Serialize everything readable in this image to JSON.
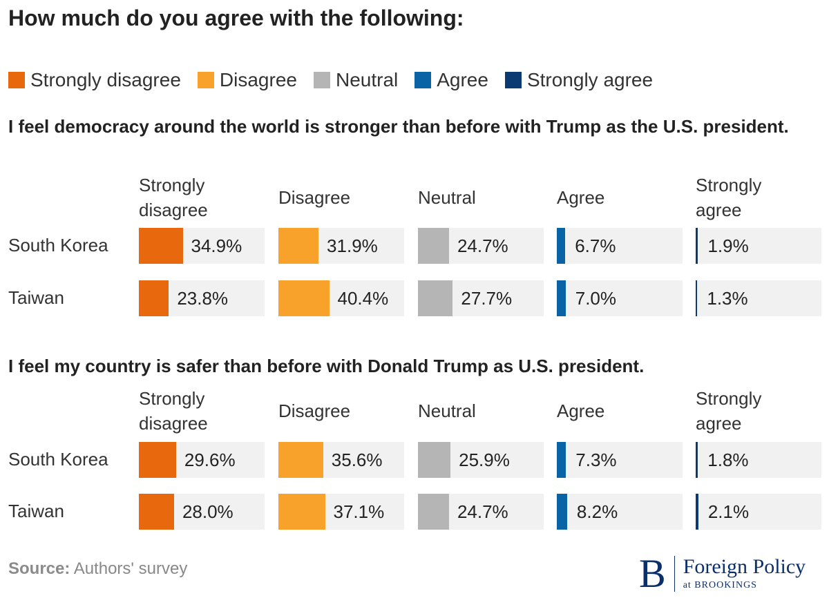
{
  "title": "How much do you agree with the following:",
  "legend": [
    {
      "label": "Strongly disagree",
      "color": "#e8690d"
    },
    {
      "label": "Disagree",
      "color": "#f8a22b"
    },
    {
      "label": "Neutral",
      "color": "#b5b5b5"
    },
    {
      "label": "Agree",
      "color": "#0a63a5"
    },
    {
      "label": "Strongly agree",
      "color": "#0b3a73"
    }
  ],
  "columns": [
    "Strongly\ndisagree",
    "Disagree",
    "Neutral",
    "Agree",
    "Strongly\nagree"
  ],
  "chart_data": {
    "type": "table",
    "categories": [
      "Strongly disagree",
      "Disagree",
      "Neutral",
      "Agree",
      "Strongly agree"
    ],
    "panels": [
      {
        "question": "I feel democracy around the world is stronger than before with Trump as the U.S. president.",
        "rows": [
          {
            "country": "South Korea",
            "values": [
              34.9,
              31.9,
              24.7,
              6.7,
              1.9
            ],
            "labels": [
              "34.9%",
              "31.9%",
              "24.7%",
              "6.7%",
              "1.9%"
            ]
          },
          {
            "country": "Taiwan",
            "values": [
              23.8,
              40.4,
              27.7,
              7.0,
              1.3
            ],
            "labels": [
              "23.8%",
              "40.4%",
              "27.7%",
              "7.0%",
              "1.3%"
            ]
          }
        ]
      },
      {
        "question": "I feel my country is safer than before with Donald Trump as U.S. president.",
        "rows": [
          {
            "country": "South Korea",
            "values": [
              29.6,
              35.6,
              25.9,
              7.3,
              1.8
            ],
            "labels": [
              "29.6%",
              "35.6%",
              "25.9%",
              "7.3%",
              "1.8%"
            ]
          },
          {
            "country": "Taiwan",
            "values": [
              28.0,
              37.1,
              24.7,
              8.2,
              2.1
            ],
            "labels": [
              "28.0%",
              "37.1%",
              "24.7%",
              "8.2%",
              "2.1%"
            ]
          }
        ]
      }
    ]
  },
  "source": {
    "label": "Source:",
    "text": " Authors' survey"
  },
  "logo": {
    "letter": "B",
    "line1": "Foreign Policy",
    "line2": "at BROOKINGS"
  }
}
